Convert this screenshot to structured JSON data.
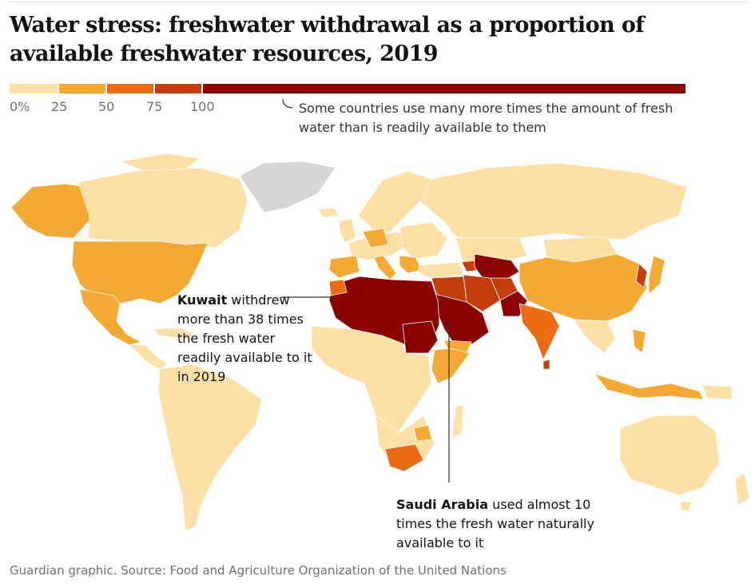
{
  "title": "Water stress: freshwater withdrawal as a proportion of available freshwater resources, 2019",
  "legend": {
    "segments": [
      {
        "label": "0%",
        "color": "#fde0a6"
      },
      {
        "label": "25",
        "color": "#f4a932"
      },
      {
        "label": "50",
        "color": "#ec6a12"
      },
      {
        "label": "75",
        "color": "#c43d0a"
      },
      {
        "label": "100",
        "color": "#8b0000"
      }
    ],
    "note": "Some countries use many more times the amount of fresh water than is readily available to them"
  },
  "colors": {
    "band_0_25": "#fde0a6",
    "band_25_50": "#f4a932",
    "band_50_75": "#ec6a12",
    "band_75_100": "#c43d0a",
    "band_over_100": "#8b0000",
    "no_data": "#d6d6d6"
  },
  "annotations": {
    "kuwait": {
      "country": "Kuwait",
      "text": " withdrew more than 38 times the fresh water readily available to it in 2019"
    },
    "saudi": {
      "country": "Saudi Arabia",
      "text": " used almost 10 times the fresh water naturally available to it"
    }
  },
  "source": "Guardian graphic. Source: Food and Agriculture Organization of the United Nations"
}
